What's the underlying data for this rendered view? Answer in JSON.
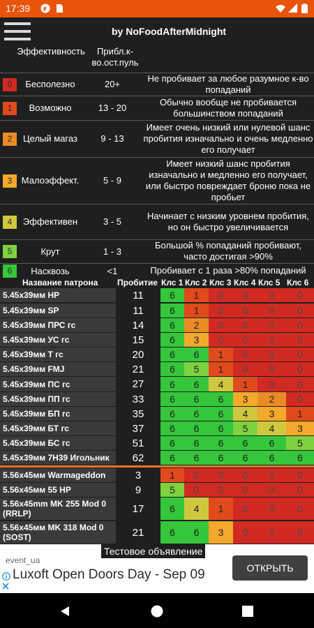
{
  "status_bar": {
    "time": "17:39",
    "icons": [
      "f-icon",
      "sd-icon",
      "wifi-icon",
      "signal-icon",
      "battery-icon"
    ]
  },
  "app_bar": {
    "menu_icon": "menu-icon",
    "title": "by NoFoodAfterMidnight"
  },
  "legend": {
    "header_effectiveness": "Эффективность",
    "header_count": "Прибл.к-во.ост.пуль",
    "colors": {
      "0": "#d12a22",
      "1": "#e14a1c",
      "2": "#ea8c26",
      "3": "#f4a82c",
      "4": "#cfc83f",
      "5": "#7ed23e",
      "6": "#35c63c"
    },
    "rows": [
      {
        "num": "0",
        "name": "Бесполезно",
        "count": "20+",
        "desc": "Не пробивает за любое разумное к-во попаданий"
      },
      {
        "num": "1",
        "name": "Возможно",
        "count": "13 - 20",
        "desc": "Обычно вообще не пробивается большинством попаданий"
      },
      {
        "num": "2",
        "name": "Целый магаз",
        "count": "9 - 13",
        "desc": "Имеет очень низкий или нулевой шанс пробития изначально и очень медленно его получает"
      },
      {
        "num": "3",
        "name": "Малоэффект.",
        "count": "5 - 9",
        "desc": "Имеет низкий шанс пробития изначально и медленно его получает, или быстро повреждает броню пока не пробьет"
      },
      {
        "num": "4",
        "name": "Эффективен",
        "count": "3 - 5",
        "desc": "Начинает с низким уровнем пробития, но он быстро увеличивается"
      },
      {
        "num": "5",
        "name": "Крут",
        "count": "1 - 3",
        "desc": "Большой % попаданий пробивают, часто достигая >90%"
      },
      {
        "num": "6",
        "name": "Насквозь",
        "count": "<1",
        "desc": "Пробивает с 1 раза >80% попаданий"
      }
    ]
  },
  "table": {
    "headers": {
      "name": "Название патрона",
      "pen": "Пробитие",
      "classes": [
        "Клс 1",
        "Клс 2",
        "Клс 3",
        "Клс 4",
        "Клс 5",
        "Клс 6"
      ]
    },
    "rows": [
      {
        "name": "5.45x39мм HP",
        "pen": "11",
        "cells": [
          "6",
          "1",
          "0",
          "0",
          "0",
          "0"
        ]
      },
      {
        "name": "5.45x39мм SP",
        "pen": "11",
        "cells": [
          "6",
          "1",
          "0",
          "0",
          "0",
          "0"
        ]
      },
      {
        "name": "5.45x39мм ПРС гс",
        "pen": "14",
        "cells": [
          "6",
          "2",
          "0",
          "0",
          "0",
          "0"
        ]
      },
      {
        "name": "5.45x39мм УС гс",
        "pen": "15",
        "cells": [
          "6",
          "3",
          "0",
          "0",
          "0",
          "0"
        ]
      },
      {
        "name": "5.45x39мм Т гс",
        "pen": "20",
        "cells": [
          "6",
          "6",
          "1",
          "0",
          "0",
          "0"
        ]
      },
      {
        "name": "5.45x39мм FMJ",
        "pen": "21",
        "cells": [
          "6",
          "5",
          "1",
          "0",
          "0",
          "0"
        ]
      },
      {
        "name": "5.45x39мм ПС гс",
        "pen": "27",
        "cells": [
          "6",
          "6",
          "4",
          "1",
          "0",
          "0"
        ]
      },
      {
        "name": "5.45x39мм ПП гс",
        "pen": "33",
        "cells": [
          "6",
          "6",
          "6",
          "3",
          "2",
          "0"
        ]
      },
      {
        "name": "5.45x39мм БП гс",
        "pen": "35",
        "cells": [
          "6",
          "6",
          "6",
          "4",
          "3",
          "1"
        ]
      },
      {
        "name": "5.45x39мм БТ гс",
        "pen": "37",
        "cells": [
          "6",
          "6",
          "6",
          "5",
          "4",
          "3"
        ]
      },
      {
        "name": "5.45x39мм БС гс",
        "pen": "51",
        "cells": [
          "6",
          "6",
          "6",
          "6",
          "6",
          "5"
        ]
      },
      {
        "name": "5.45x39мм 7Н39 Игольник",
        "pen": "62",
        "cells": [
          "6",
          "6",
          "6",
          "6",
          "6",
          "6"
        ]
      },
      {
        "name": "5.56x45мм Warmageddon",
        "pen": "3",
        "cells": [
          "1",
          "0",
          "0",
          "0",
          "0",
          "0"
        ]
      },
      {
        "name": "5.56x45мм 55 HP",
        "pen": "9",
        "cells": [
          "5",
          "0",
          "0",
          "0",
          "0",
          "0"
        ]
      },
      {
        "name": "5.56x45mm MK 255 Mod 0 (RRLP)",
        "pen": "17",
        "cells": [
          "6",
          "4",
          "1",
          "0",
          "0",
          "0"
        ]
      },
      {
        "name": "5.56x45мм MK 318 Mod 0 (SOST)",
        "pen": "21",
        "cells": [
          "6",
          "6",
          "3",
          "0",
          "0",
          "0"
        ]
      }
    ]
  },
  "ad": {
    "tag": "Тестовое объявление",
    "source": "event_ua",
    "headline": "Luxoft Open Doors Day - Sep 09",
    "cta": "ОТКРЫТЬ"
  },
  "nav_bar": {
    "icons": [
      "back-icon",
      "home-icon",
      "recents-icon"
    ]
  }
}
